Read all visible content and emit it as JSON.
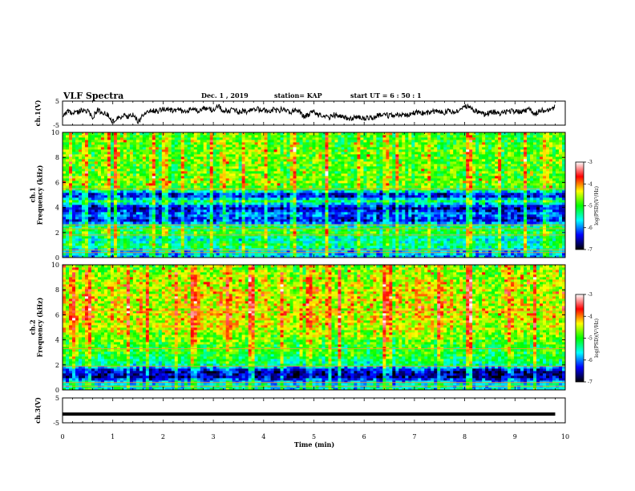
{
  "header": {
    "title": "VLF Spectra",
    "date": "Dec. 1 , 2019",
    "station": "station= KAP",
    "start_time": "start  UT  =  6 : 50 : 1"
  },
  "chart_data": [
    {
      "type": "line",
      "name": "ch1-waveform",
      "ylabel": "ch.1(V)",
      "ylim": [
        -5,
        5
      ],
      "yticks": [
        "5",
        "-5"
      ],
      "xlim": [
        0,
        10
      ],
      "x": [
        0,
        0.1,
        0.2,
        0.3,
        0.4,
        0.5,
        0.6,
        0.7,
        0.8,
        0.9,
        1.0,
        1.1,
        1.2,
        1.3,
        1.4,
        1.5,
        1.6,
        1.7,
        1.8,
        1.9,
        2.0,
        2.1,
        2.2,
        2.3,
        2.4,
        2.5,
        2.6,
        2.7,
        2.8,
        2.9,
        3.0,
        3.1,
        3.2,
        3.3,
        3.4,
        3.5,
        3.6,
        3.7,
        3.8,
        3.9,
        4.0,
        4.1,
        4.2,
        4.3,
        4.4,
        4.5,
        4.6,
        4.7,
        4.8,
        4.9,
        5.0,
        5.1,
        5.2,
        5.3,
        5.4,
        5.5,
        5.6,
        5.7,
        5.8,
        5.9,
        6.0,
        6.1,
        6.2,
        6.3,
        6.4,
        6.5,
        6.6,
        6.7,
        6.8,
        6.9,
        7.0,
        7.1,
        7.2,
        7.3,
        7.4,
        7.5,
        7.6,
        7.7,
        7.8,
        7.9,
        8.0,
        8.1,
        8.2,
        8.3,
        8.4,
        8.5,
        8.6,
        8.7,
        8.8,
        8.9,
        9.0,
        9.1,
        9.2,
        9.3,
        9.4,
        9.5,
        9.6,
        9.7,
        9.8
      ],
      "y": [
        -1,
        1,
        -0.5,
        0.5,
        1.5,
        0.8,
        -1.5,
        1.2,
        0.3,
        -0.5,
        -3.5,
        -2,
        -1.2,
        -1.5,
        -0.5,
        -3.5,
        -1,
        0.5,
        1,
        0.8,
        1.5,
        2,
        0.8,
        1.6,
        0.5,
        1.2,
        2,
        0.5,
        1.5,
        2.2,
        1,
        2.8,
        1.2,
        0.6,
        1.8,
        0.5,
        0.8,
        0.4,
        2,
        1.5,
        1.2,
        0.8,
        1.6,
        0.5,
        2.5,
        0.2,
        1,
        0.8,
        -1.5,
        -0.5,
        0.6,
        -1,
        -0.5,
        -2,
        -0.8,
        -1.2,
        -1.5,
        -2.5,
        -2,
        -1.8,
        -2,
        -2.2,
        -1.5,
        -0.8,
        -0.5,
        -1.2,
        -0.6,
        -0.8,
        -1,
        -0.5,
        0,
        0.5,
        -0.3,
        0.2,
        0.8,
        0.6,
        0.2,
        1,
        0.2,
        1.5,
        3.5,
        2,
        1.2,
        0,
        -0.5,
        0.2,
        0.5,
        -0.8,
        0.6,
        1,
        0.5,
        0.4,
        0.8,
        1.8,
        -0.5,
        1,
        1.2,
        1.5,
        2.5
      ]
    },
    {
      "type": "heatmap",
      "name": "ch1-spectrogram",
      "ylabel": "ch.1\nFrequency (kHz)",
      "ylim": [
        0,
        10
      ],
      "yticks": [
        "0",
        "2",
        "4",
        "6",
        "8",
        "10"
      ],
      "xlim": [
        0,
        10
      ],
      "colorbar": {
        "label": "log(PSD)(V²/Hz)",
        "ticks": [
          "-3",
          "-4",
          "-5",
          "-6",
          "-7"
        ],
        "range": [
          -7,
          -3
        ]
      },
      "background_freq_profile_khz": [
        [
          0.5,
          -5.8
        ],
        [
          1.0,
          -5.2
        ],
        [
          1.5,
          -5.6
        ],
        [
          2.0,
          -5.0
        ],
        [
          2.5,
          -5.3
        ],
        [
          3.0,
          -6.4
        ],
        [
          3.5,
          -6.0
        ],
        [
          4.0,
          -6.6
        ],
        [
          4.5,
          -5.2
        ],
        [
          5.0,
          -6.6
        ],
        [
          5.5,
          -5.0
        ],
        [
          6.0,
          -4.8
        ],
        [
          7.0,
          -4.9
        ],
        [
          8.0,
          -4.8
        ],
        [
          9.0,
          -4.9
        ],
        [
          10.0,
          -4.9
        ]
      ],
      "bursts_min": [
        0.15,
        0.45,
        0.9,
        1.05,
        1.8,
        2.05,
        2.4,
        2.95,
        3.2,
        3.6,
        4.05,
        4.6,
        5.25,
        5.9,
        6.45,
        6.65,
        7.3,
        8.05,
        8.1,
        8.7,
        9.2,
        9.6
      ],
      "horizontal_lines_khz": [
        0.4,
        0.6,
        1.8,
        2.3,
        2.6,
        5.5
      ]
    },
    {
      "type": "heatmap",
      "name": "ch2-spectrogram",
      "ylabel": "ch.2\nFrequency (kHz)",
      "ylim": [
        0,
        10
      ],
      "yticks": [
        "0",
        "2",
        "4",
        "6",
        "8",
        "10"
      ],
      "xlim": [
        0,
        10
      ],
      "colorbar": {
        "label": "log(PSD)(V²/Hz)",
        "ticks": [
          "-3",
          "-4",
          "-5",
          "-6",
          "-7"
        ],
        "range": [
          -7,
          -3
        ]
      },
      "background_freq_profile_khz": [
        [
          0.5,
          -5.6
        ],
        [
          1.0,
          -6.6
        ],
        [
          1.5,
          -6.6
        ],
        [
          2.0,
          -5.4
        ],
        [
          2.5,
          -5.2
        ],
        [
          3.0,
          -5.0
        ],
        [
          3.5,
          -5.0
        ],
        [
          4.0,
          -4.8
        ],
        [
          5.0,
          -4.5
        ],
        [
          6.0,
          -4.4
        ],
        [
          7.0,
          -4.5
        ],
        [
          8.0,
          -4.5
        ],
        [
          9.0,
          -4.6
        ],
        [
          10.0,
          -4.8
        ]
      ],
      "bursts_min": [
        0.2,
        0.5,
        1.3,
        1.7,
        2.25,
        2.6,
        3.3,
        3.75,
        4.35,
        4.9,
        5.3,
        5.5,
        6.4,
        6.5,
        7.5,
        8.05,
        8.1,
        8.9,
        9.4
      ],
      "horizontal_lines_khz": [
        0.3,
        0.6,
        1.9,
        3.3,
        6.3
      ]
    },
    {
      "type": "line",
      "name": "ch3-waveform",
      "ylabel": "ch.3(V)",
      "ylim": [
        -5,
        5
      ],
      "yticks": [
        "5",
        "-5"
      ],
      "xlim": [
        0,
        10
      ],
      "x": [
        0,
        9.8
      ],
      "y": [
        -1.5,
        -1.5
      ]
    }
  ],
  "x_axis": {
    "label": "Time  (min)",
    "ticks": [
      "0",
      "1",
      "2",
      "3",
      "4",
      "5",
      "6",
      "7",
      "8",
      "9",
      "10"
    ]
  },
  "colors": {
    "colormap": [
      "#000000",
      "#0000ff",
      "#00ffff",
      "#00ff00",
      "#ffff00",
      "#ff0000",
      "#ffffff"
    ],
    "frame": "#000000",
    "line": "#000000"
  }
}
